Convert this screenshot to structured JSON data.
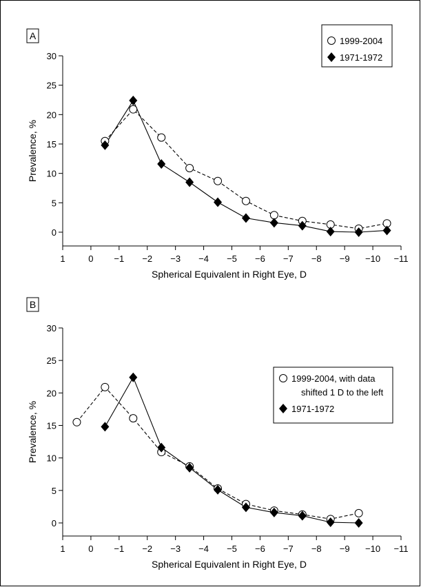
{
  "chart_data": [
    {
      "type": "line",
      "panel_label": "A",
      "xlabel": "Spherical Equivalent in Right Eye, D",
      "ylabel": "Prevalence, %",
      "xlim": [
        1,
        -11
      ],
      "ylim": [
        0,
        30
      ],
      "x_ticks": [
        1,
        0,
        -1,
        -2,
        -3,
        -4,
        -5,
        -6,
        -7,
        -8,
        -9,
        -10,
        -11
      ],
      "x_tick_labels": [
        "1",
        "0",
        "−1",
        "−2",
        "−3",
        "−4",
        "−5",
        "−6",
        "−7",
        "−8",
        "−9",
        "−10",
        "−11"
      ],
      "y_ticks": [
        0,
        5,
        10,
        15,
        20,
        25,
        30
      ],
      "y_tick_labels": [
        "0",
        "5",
        "10",
        "15",
        "20",
        "25",
        "30"
      ],
      "grid": false,
      "legend_position": "top-right",
      "series": [
        {
          "legend_lines": [
            "1999-2004"
          ],
          "marker": "open-circle",
          "line_style": "dashed",
          "x": [
            -0.5,
            -1.5,
            -2.5,
            -3.5,
            -4.5,
            -5.5,
            -6.5,
            -7.5,
            -8.5,
            -9.5,
            -10.5
          ],
          "y": [
            15.5,
            20.9,
            16.1,
            10.9,
            8.7,
            5.3,
            2.9,
            1.9,
            1.3,
            0.6,
            1.5
          ]
        },
        {
          "legend_lines": [
            "1971-1972"
          ],
          "marker": "filled-diamond",
          "line_style": "solid",
          "x": [
            -0.5,
            -1.5,
            -2.5,
            -3.5,
            -4.5,
            -5.5,
            -6.5,
            -7.5,
            -8.5,
            -9.5,
            -10.5
          ],
          "y": [
            14.8,
            22.4,
            11.6,
            8.5,
            5.1,
            2.4,
            1.6,
            1.1,
            0.1,
            0.0,
            0.3
          ]
        }
      ]
    },
    {
      "type": "line",
      "panel_label": "B",
      "xlabel": "Spherical Equivalent in Right Eye, D",
      "ylabel": "Prevalence, %",
      "xlim": [
        1,
        -11
      ],
      "ylim": [
        0,
        30
      ],
      "x_ticks": [
        1,
        0,
        -1,
        -2,
        -3,
        -4,
        -5,
        -6,
        -7,
        -8,
        -9,
        -10,
        -11
      ],
      "x_tick_labels": [
        "1",
        "0",
        "−1",
        "−2",
        "−3",
        "−4",
        "−5",
        "−6",
        "−7",
        "−8",
        "−9",
        "−10",
        "−11"
      ],
      "y_ticks": [
        0,
        5,
        10,
        15,
        20,
        25,
        30
      ],
      "y_tick_labels": [
        "0",
        "5",
        "10",
        "15",
        "20",
        "25",
        "30"
      ],
      "grid": false,
      "legend_position": "top-right",
      "series": [
        {
          "legend_lines": [
            "1999-2004, with data",
            "shifted 1 D to the left"
          ],
          "marker": "open-circle",
          "line_style": "dashed",
          "x": [
            0.5,
            -0.5,
            -1.5,
            -2.5,
            -3.5,
            -4.5,
            -5.5,
            -6.5,
            -7.5,
            -8.5,
            -9.5
          ],
          "y": [
            15.5,
            20.9,
            16.1,
            10.9,
            8.7,
            5.3,
            2.9,
            1.9,
            1.3,
            0.6,
            1.5
          ]
        },
        {
          "legend_lines": [
            "1971-1972"
          ],
          "marker": "filled-diamond",
          "line_style": "solid",
          "x": [
            -0.5,
            -1.5,
            -2.5,
            -3.5,
            -4.5,
            -5.5,
            -6.5,
            -7.5,
            -8.5,
            -9.5
          ],
          "y": [
            14.8,
            22.4,
            11.6,
            8.5,
            5.1,
            2.4,
            1.6,
            1.1,
            0.1,
            0.0
          ]
        }
      ]
    }
  ]
}
